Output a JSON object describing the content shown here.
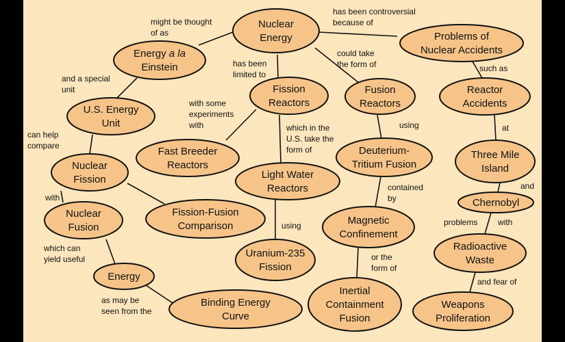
{
  "nodes": [
    {
      "id": "nuclear-energy",
      "lines": [
        "Nuclear",
        "Energy"
      ]
    },
    {
      "id": "energy-einstein",
      "lines": [
        [
          "Energy ",
          {
            "i": "a la"
          }
        ],
        "Einstein"
      ]
    },
    {
      "id": "problems-accidents",
      "lines": [
        "Problems of",
        "Nuclear Accidents"
      ]
    },
    {
      "id": "us-energy-unit",
      "lines": [
        "U.S. Energy",
        "Unit"
      ]
    },
    {
      "id": "fission-reactors",
      "lines": [
        "Fission",
        "Reactors"
      ]
    },
    {
      "id": "fusion-reactors",
      "lines": [
        "Fusion",
        "Reactors"
      ]
    },
    {
      "id": "reactor-accidents",
      "lines": [
        "Reactor",
        "Accidents"
      ]
    },
    {
      "id": "fast-breeder",
      "lines": [
        "Fast Breeder",
        "Reactors"
      ]
    },
    {
      "id": "light-water",
      "lines": [
        "Light Water",
        "Reactors"
      ]
    },
    {
      "id": "dt-fusion",
      "lines": [
        "Deuterium-",
        "Tritium Fusion"
      ]
    },
    {
      "id": "three-mile",
      "lines": [
        "Three Mile",
        "Island"
      ]
    },
    {
      "id": "nuclear-fission",
      "lines": [
        "Nuclear",
        "Fission"
      ]
    },
    {
      "id": "chernobyl",
      "lines": [
        "Chernobyl"
      ]
    },
    {
      "id": "nuclear-fusion",
      "lines": [
        "Nuclear",
        "Fusion"
      ]
    },
    {
      "id": "fission-fusion-comparison",
      "lines": [
        "Fission-Fusion",
        "Comparison"
      ]
    },
    {
      "id": "magnetic-confinement",
      "lines": [
        "Magnetic",
        "Confinement"
      ]
    },
    {
      "id": "radioactive-waste",
      "lines": [
        "Radioactive",
        "Waste"
      ]
    },
    {
      "id": "u235-fission",
      "lines": [
        "Uranium-235",
        "Fission"
      ]
    },
    {
      "id": "energy",
      "lines": [
        "Energy"
      ]
    },
    {
      "id": "binding-energy-curve",
      "lines": [
        "Binding Energy",
        "Curve"
      ]
    },
    {
      "id": "inertial-containment",
      "lines": [
        "Inertial",
        "Containment",
        "Fusion"
      ]
    },
    {
      "id": "weapons-proliferation",
      "lines": [
        "Weapons",
        "Proliferation"
      ]
    }
  ],
  "links": [
    {
      "id": "might-be-thought-of-as",
      "lines": [
        "might be thought",
        "of as"
      ]
    },
    {
      "id": "has-been-controversial",
      "lines": [
        "has been controversial",
        "because of"
      ]
    },
    {
      "id": "has-been-limited-to",
      "lines": [
        "has been",
        "limited to"
      ]
    },
    {
      "id": "could-take-the-form-of",
      "lines": [
        "could take",
        "the form of"
      ]
    },
    {
      "id": "such-as",
      "lines": [
        "such as"
      ]
    },
    {
      "id": "and-a-special-unit",
      "lines": [
        "and a special",
        "unit"
      ]
    },
    {
      "id": "with-some-experiments-with",
      "lines": [
        "with some",
        "experiments",
        "with"
      ]
    },
    {
      "id": "which-in-the-us",
      "lines": [
        "which in the",
        "U.S. take the",
        "form of"
      ]
    },
    {
      "id": "using-1",
      "lines": [
        "using"
      ]
    },
    {
      "id": "at",
      "lines": [
        "at"
      ]
    },
    {
      "id": "can-help-compare",
      "lines": [
        "can help",
        "compare"
      ]
    },
    {
      "id": "and",
      "lines": [
        "and"
      ]
    },
    {
      "id": "contained-by",
      "lines": [
        "contained",
        "by"
      ]
    },
    {
      "id": "with-1",
      "lines": [
        "with"
      ]
    },
    {
      "id": "problems",
      "lines": [
        "problems"
      ]
    },
    {
      "id": "with-2",
      "lines": [
        "with"
      ]
    },
    {
      "id": "using-2",
      "lines": [
        "using"
      ]
    },
    {
      "id": "which-can-yield-useful",
      "lines": [
        "which can",
        "yield useful"
      ]
    },
    {
      "id": "or-the-form-of",
      "lines": [
        "or the",
        "form of"
      ]
    },
    {
      "id": "and-fear-of",
      "lines": [
        "and fear of"
      ]
    },
    {
      "id": "as-may-be-seen",
      "lines": [
        "as may be",
        "seen from the"
      ]
    }
  ]
}
